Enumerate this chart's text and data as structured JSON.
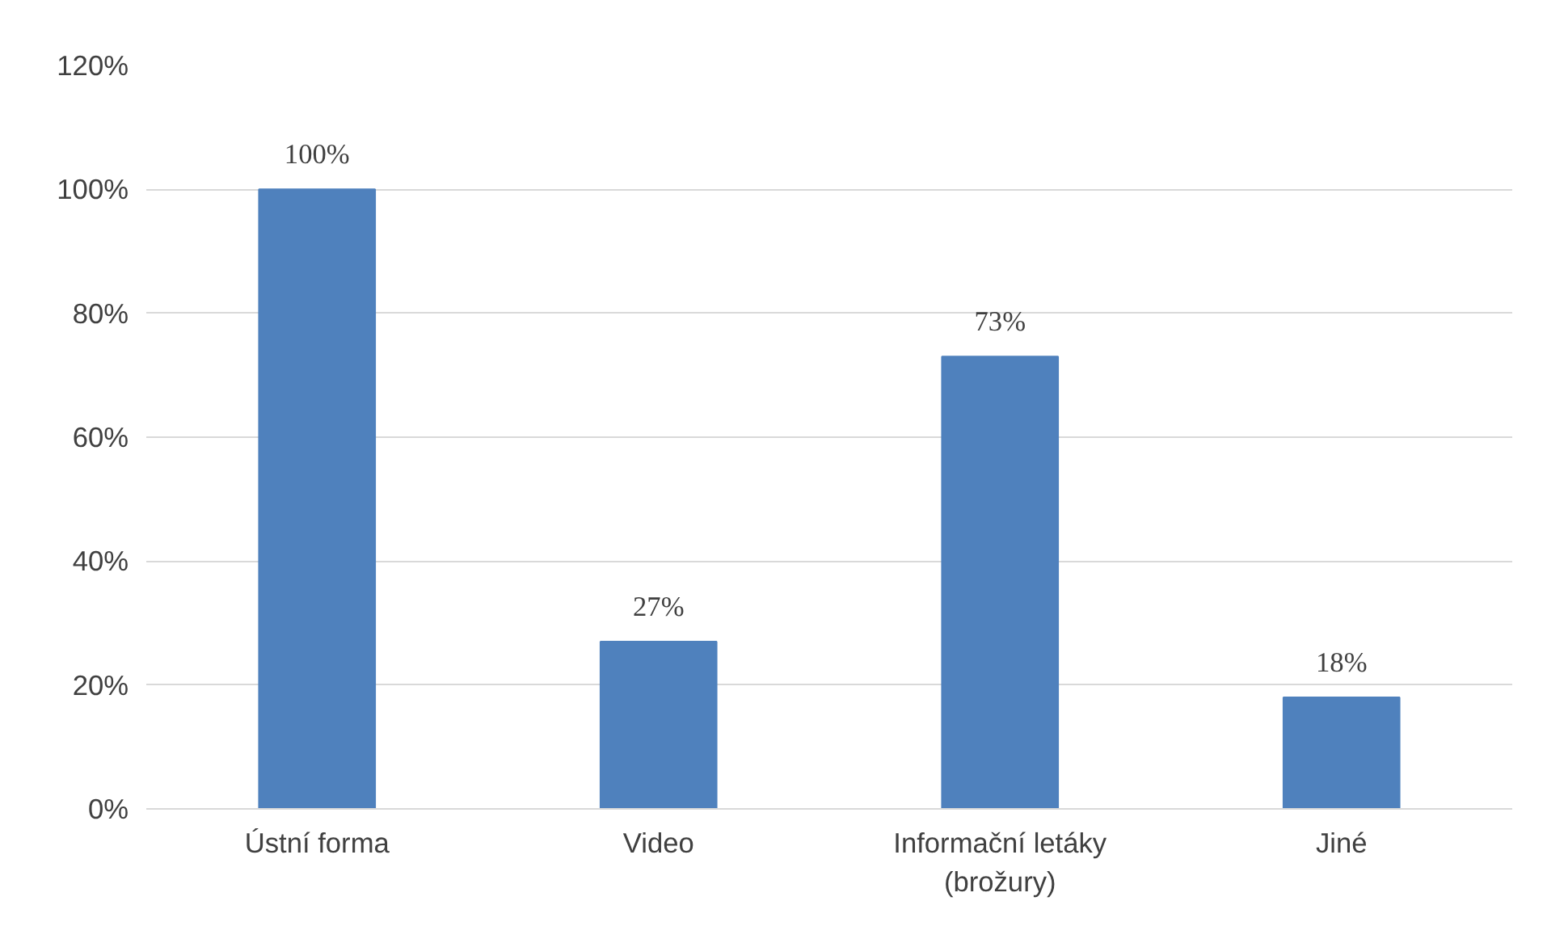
{
  "chart_data": {
    "type": "bar",
    "categories": [
      "Ústní forma",
      "Video",
      "Informační letáky\n(brožury)",
      "Jiné"
    ],
    "values": [
      100,
      27,
      73,
      18
    ],
    "value_labels": [
      "100%",
      "27%",
      "73%",
      "18%"
    ],
    "color": "#4f81bd",
    "ylim": [
      0,
      120
    ],
    "yticks": [
      {
        "value": 0,
        "label": "0%"
      },
      {
        "value": 20,
        "label": "20%"
      },
      {
        "value": 40,
        "label": "40%"
      },
      {
        "value": 60,
        "label": "60%"
      },
      {
        "value": 80,
        "label": "80%"
      },
      {
        "value": 100,
        "label": "100%"
      },
      {
        "value": 120,
        "label": "120%"
      }
    ],
    "grid": "y"
  }
}
